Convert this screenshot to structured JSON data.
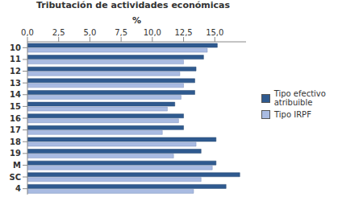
{
  "chart_data": {
    "type": "bar",
    "title": "Tributación de actividades económicas",
    "x_label": "%",
    "orientation": "horizontal",
    "categories": [
      "10",
      "11",
      "12",
      "13",
      "14",
      "15",
      "16",
      "17",
      "18",
      "19",
      "M",
      "SC",
      "4"
    ],
    "series": [
      {
        "name": "Tipo efectivo atribuible",
        "color": "#2f5a8f",
        "values": [
          15.2,
          14.1,
          13.5,
          13.4,
          13.4,
          11.8,
          12.5,
          12.5,
          15.1,
          13.9,
          15.1,
          17.0,
          15.9
        ]
      },
      {
        "name": "Tipo IRPF",
        "color": "#a9bbe2",
        "values": [
          14.4,
          12.5,
          12.2,
          12.5,
          12.3,
          11.2,
          12.1,
          10.8,
          13.5,
          11.7,
          14.8,
          13.9,
          13.3
        ]
      }
    ],
    "xlim": [
      0,
      17.5
    ],
    "xticks": [
      {
        "value": 0,
        "label": "0,0"
      },
      {
        "value": 2.5,
        "label": "2,5"
      },
      {
        "value": 5,
        "label": "5,0"
      },
      {
        "value": 7.5,
        "label": "7,5"
      },
      {
        "value": 10,
        "label": "10,0"
      },
      {
        "value": 12.5,
        "label": "12,5"
      },
      {
        "value": 15,
        "label": "15,0"
      }
    ],
    "grid": false,
    "legend": "right"
  }
}
